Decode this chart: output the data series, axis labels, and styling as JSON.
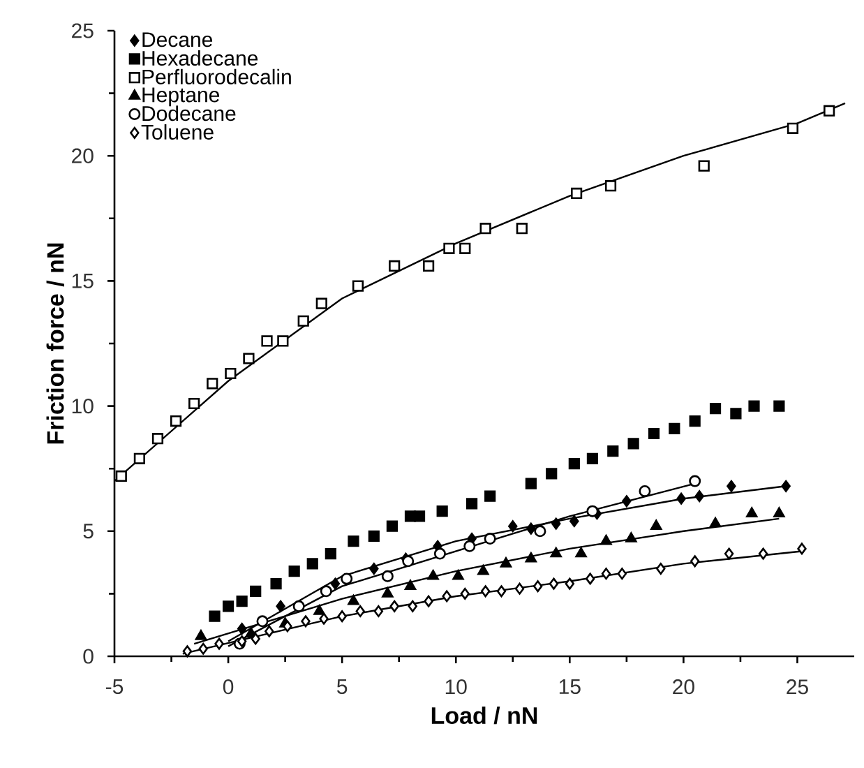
{
  "chart_data": {
    "type": "scatter",
    "xlabel": "Load / nN",
    "ylabel": "Friction force / nN",
    "xlim": [
      -5,
      27.5
    ],
    "xticks": [
      -5,
      0,
      5,
      10,
      15,
      20,
      25
    ],
    "ylim": [
      0,
      25
    ],
    "yticks": [
      0,
      5,
      10,
      15,
      20,
      25
    ],
    "legend": "top left",
    "grid": false,
    "series": [
      {
        "name": "Decane",
        "marker": "diamond",
        "color": "#000000",
        "x": [
          0.6,
          2.3,
          4.7,
          6.4,
          7.8,
          9.2,
          10.7,
          12.5,
          13.3,
          14.4,
          15.2,
          16.2,
          17.5,
          19.9,
          20.7,
          22.1,
          24.5
        ],
        "values": [
          1.1,
          2.0,
          2.9,
          3.5,
          3.9,
          4.4,
          4.7,
          5.2,
          5.1,
          5.3,
          5.4,
          5.7,
          6.2,
          6.3,
          6.4,
          6.8,
          6.8
        ]
      },
      {
        "name": "Hexadecane",
        "marker": "square",
        "color": "#000000",
        "x": [
          -0.6,
          0,
          0.6,
          1.2,
          2.1,
          2.9,
          3.7,
          4.5,
          5.5,
          6.4,
          7.2,
          8.0,
          8.4,
          9.4,
          10.7,
          11.5,
          13.3,
          14.2,
          15.2,
          16.0,
          16.9,
          17.8,
          18.7,
          19.6,
          20.5,
          21.4,
          22.3,
          23.1,
          24.2
        ],
        "values": [
          1.6,
          2.0,
          2.2,
          2.6,
          2.9,
          3.4,
          3.7,
          4.1,
          4.6,
          4.8,
          5.2,
          5.6,
          5.6,
          5.8,
          6.1,
          6.4,
          6.9,
          7.3,
          7.7,
          7.9,
          8.2,
          8.5,
          8.9,
          9.1,
          9.4,
          9.9,
          9.7,
          10.0,
          10.0
        ]
      },
      {
        "name": "Perfluorodecalin",
        "marker": "square",
        "color": "#ffffff",
        "x": [
          -4.7,
          -3.9,
          -3.1,
          -2.3,
          -1.5,
          -0.7,
          0.1,
          0.9,
          1.7,
          2.4,
          3.3,
          4.1,
          5.7,
          7.3,
          8.8,
          9.7,
          10.4,
          11.3,
          12.9,
          15.3,
          16.8,
          20.9,
          24.8,
          26.4
        ],
        "values": [
          7.2,
          7.9,
          8.7,
          9.4,
          10.1,
          10.9,
          11.3,
          11.9,
          12.6,
          12.6,
          13.4,
          14.1,
          14.8,
          15.6,
          15.6,
          16.3,
          16.3,
          17.1,
          17.1,
          18.5,
          18.8,
          19.6,
          21.1,
          21.8
        ]
      },
      {
        "name": "Heptane",
        "marker": "triangle",
        "color": "#000000",
        "x": [
          -1.2,
          1.0,
          2.5,
          4.0,
          5.5,
          7.0,
          8.0,
          9.0,
          10.1,
          11.2,
          12.2,
          13.3,
          14.4,
          15.5,
          16.6,
          17.7,
          18.8,
          21.4,
          23.0,
          24.2
        ],
        "values": [
          0.8,
          0.9,
          1.3,
          1.8,
          2.2,
          2.5,
          2.8,
          3.2,
          3.2,
          3.4,
          3.7,
          3.9,
          4.1,
          4.1,
          4.6,
          4.7,
          5.2,
          5.3,
          5.7,
          5.7
        ]
      },
      {
        "name": "Dodecane",
        "marker": "circle",
        "color": "#ffffff",
        "x": [
          0.5,
          1.5,
          3.1,
          4.3,
          5.2,
          7.0,
          7.9,
          9.3,
          10.6,
          11.5,
          13.7,
          16.0,
          18.3,
          20.5
        ],
        "values": [
          0.5,
          1.4,
          2.0,
          2.6,
          3.1,
          3.2,
          3.8,
          4.1,
          4.4,
          4.7,
          5.0,
          5.8,
          6.6,
          7.0
        ]
      },
      {
        "name": "Toluene",
        "marker": "diamond",
        "color": "#ffffff",
        "x": [
          -1.8,
          -1.1,
          -0.4,
          0.6,
          1.2,
          1.8,
          2.6,
          3.4,
          4.2,
          5.0,
          5.8,
          6.6,
          7.3,
          8.1,
          8.8,
          9.6,
          10.4,
          11.3,
          12.0,
          12.8,
          13.6,
          14.3,
          15.0,
          15.9,
          16.6,
          17.3,
          19.0,
          20.5,
          22.0,
          23.5,
          25.2
        ],
        "values": [
          0.2,
          0.3,
          0.5,
          0.6,
          0.7,
          1.0,
          1.2,
          1.4,
          1.5,
          1.6,
          1.8,
          1.8,
          2.0,
          2.0,
          2.2,
          2.4,
          2.5,
          2.6,
          2.6,
          2.7,
          2.8,
          2.9,
          2.9,
          3.1,
          3.3,
          3.3,
          3.5,
          3.8,
          4.1,
          4.1,
          4.3
        ]
      },
      {
        "type": "line",
        "marker": "none",
        "color": "#000000",
        "x": [
          -5,
          0,
          5,
          10,
          15,
          20,
          25,
          27.1
        ],
        "values": [
          7.0,
          11.0,
          14.3,
          16.5,
          18.4,
          20.0,
          21.3,
          22.1
        ]
      },
      {
        "type": "line",
        "marker": "none",
        "color": "#000000",
        "x": [
          0,
          5,
          10,
          15,
          20,
          24.5
        ],
        "values": [
          0.6,
          3.2,
          4.6,
          5.5,
          6.3,
          6.8
        ]
      },
      {
        "type": "line",
        "marker": "none",
        "color": "#000000",
        "x": [
          0,
          5,
          10,
          15,
          20.5
        ],
        "values": [
          0.4,
          2.8,
          4.2,
          5.6,
          6.9
        ]
      },
      {
        "type": "line",
        "marker": "none",
        "color": "#000000",
        "x": [
          -1.5,
          5,
          10,
          15,
          20,
          24.2
        ],
        "values": [
          0.5,
          2.3,
          3.4,
          4.3,
          5.0,
          5.5
        ]
      },
      {
        "type": "line",
        "marker": "none",
        "color": "#000000",
        "x": [
          -2,
          5,
          10,
          15,
          20,
          25.2
        ],
        "values": [
          0.1,
          1.6,
          2.4,
          3.0,
          3.7,
          4.2
        ]
      }
    ]
  }
}
